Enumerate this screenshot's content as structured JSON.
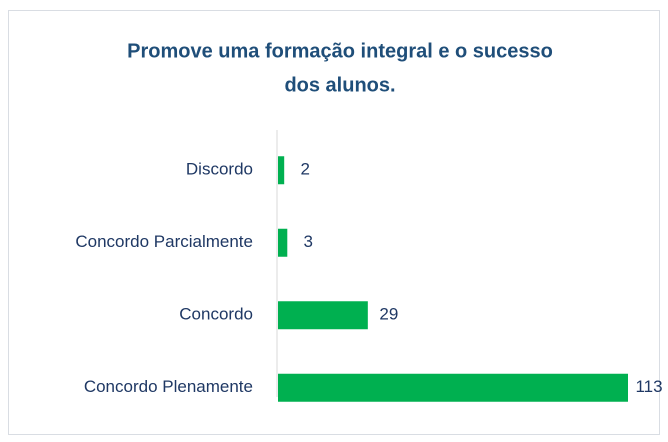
{
  "chart_data": {
    "type": "barh",
    "title": [
      "Promove uma formação integral e o sucesso",
      "dos alunos."
    ],
    "categories": [
      "Discordo",
      "Concordo Parcialmente",
      "Concordo",
      "Concordo Plenamente"
    ],
    "values": [
      2,
      3,
      29,
      113
    ],
    "color": "#00b050"
  }
}
